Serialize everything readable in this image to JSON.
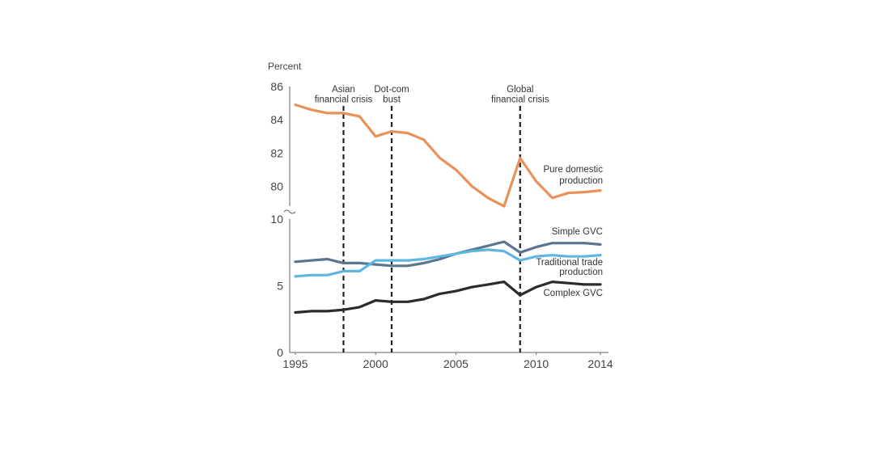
{
  "chart_data": {
    "type": "line",
    "ylabel": "Percent",
    "x": [
      1995,
      1996,
      1997,
      1998,
      1999,
      2000,
      2001,
      2002,
      2003,
      2004,
      2005,
      2006,
      2007,
      2008,
      2009,
      2010,
      2011,
      2012,
      2013,
      2014
    ],
    "x_ticks": [
      "1995",
      "2000",
      "2005",
      "2010",
      "2014"
    ],
    "upper_panel": {
      "ylim": [
        79,
        86
      ],
      "ticks": [
        "80",
        "82",
        "84",
        "86"
      ]
    },
    "lower_panel": {
      "ylim": [
        0,
        10
      ],
      "ticks": [
        "0",
        "5",
        "10"
      ]
    },
    "series": [
      {
        "name": "Pure domestic production",
        "label_lines": [
          "Pure domestic",
          "production"
        ],
        "panel": "upper",
        "color": "#e8925a",
        "values": [
          84.9,
          84.6,
          84.4,
          84.4,
          84.2,
          83.0,
          83.3,
          83.2,
          82.8,
          81.7,
          81.0,
          80.0,
          79.3,
          78.8,
          81.7,
          80.3,
          79.3,
          79.6,
          79.65,
          79.75
        ]
      },
      {
        "name": "Simple GVC",
        "label_lines": [
          "Simple GVC"
        ],
        "panel": "lower",
        "color": "#5a7590",
        "values": [
          6.8,
          6.9,
          7.0,
          6.7,
          6.7,
          6.6,
          6.5,
          6.5,
          6.7,
          7.0,
          7.4,
          7.7,
          8.0,
          8.3,
          7.5,
          7.9,
          8.2,
          8.2,
          8.2,
          8.1
        ]
      },
      {
        "name": "Traditional trade production",
        "label_lines": [
          "Traditional trade",
          "production"
        ],
        "panel": "lower",
        "color": "#5fb7e1",
        "values": [
          5.7,
          5.8,
          5.8,
          6.1,
          6.1,
          6.9,
          6.9,
          6.9,
          7.0,
          7.2,
          7.4,
          7.6,
          7.7,
          7.6,
          6.9,
          7.2,
          7.3,
          7.2,
          7.2,
          7.3
        ]
      },
      {
        "name": "Complex GVC",
        "label_lines": [
          "Complex GVC"
        ],
        "panel": "lower",
        "color": "#2b2b2b",
        "values": [
          3.0,
          3.1,
          3.1,
          3.2,
          3.4,
          3.9,
          3.8,
          3.8,
          4.0,
          4.4,
          4.6,
          4.9,
          5.1,
          5.3,
          4.3,
          4.9,
          5.3,
          5.2,
          5.1,
          5.1
        ]
      }
    ],
    "annotations": [
      {
        "x": 1998,
        "lines": [
          "Asian",
          "financial crisis"
        ]
      },
      {
        "x": 2001,
        "lines": [
          "Dot-com",
          "bust"
        ]
      },
      {
        "x": 2009,
        "lines": [
          "Global",
          "financial crisis"
        ]
      }
    ],
    "grid": false,
    "legend": "inline-labels-right"
  }
}
